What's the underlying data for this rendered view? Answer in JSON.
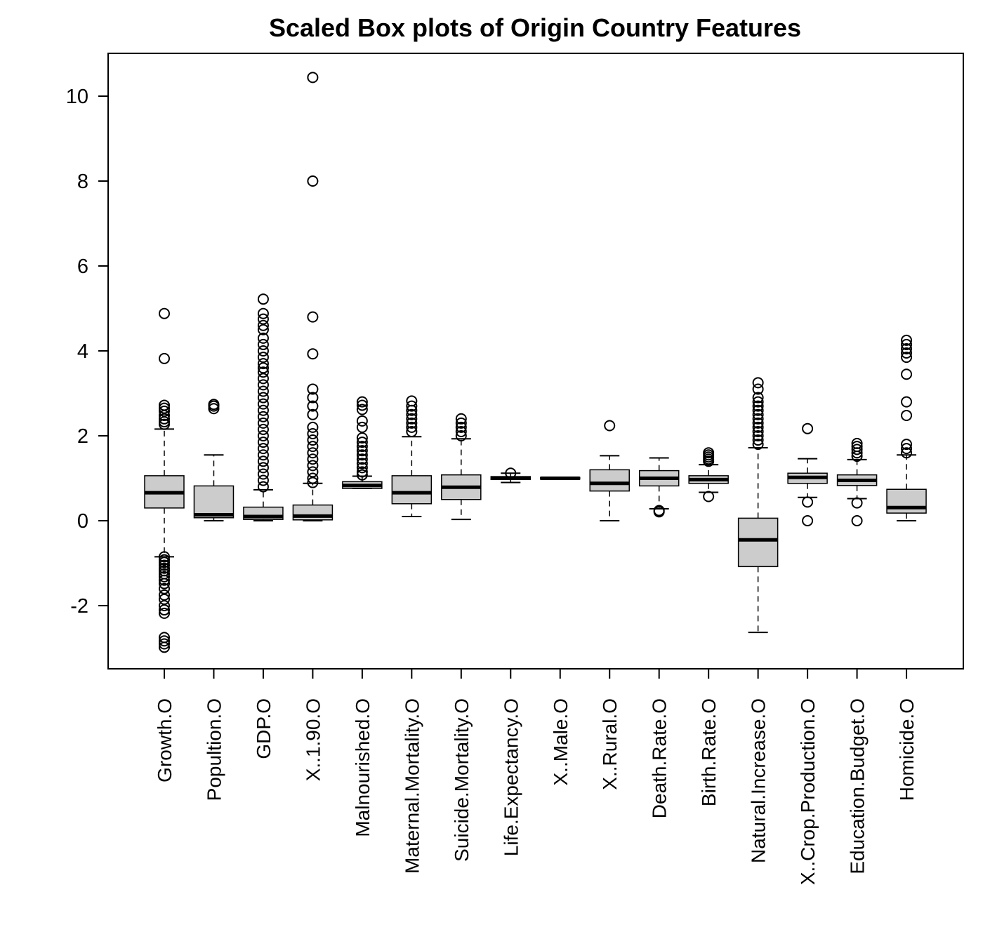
{
  "chart_data": {
    "type": "box",
    "title": "Scaled Box plots of Origin Country Features",
    "xlabel": "",
    "ylabel": "",
    "ylim": [
      -3.5,
      11
    ],
    "y_ticks": [
      -2,
      0,
      2,
      4,
      6,
      8,
      10
    ],
    "grid": false,
    "legend": "none",
    "colors": {
      "box_fill": "#cccccc",
      "stroke": "#000000",
      "background": "#ffffff"
    },
    "categories": [
      "Growth.O",
      "Popultion.O",
      "GDP.O",
      "X..1.90.O",
      "Malnourished.O",
      "Maternal.Mortality.O",
      "Suicide.Mortality.O",
      "Life.Expectancy.O",
      "X..Male.O",
      "X..Rural.O",
      "Death.Rate.O",
      "Birth.Rate.O",
      "Natural.Increase.O",
      "X..Crop.Production.O",
      "Education.Budget.O",
      "Homicide.O"
    ],
    "boxes": [
      {
        "name": "Growth.O",
        "whisker_low": -0.85,
        "q1": 0.3,
        "median": 0.66,
        "q3": 1.06,
        "whisker_high": 2.16,
        "outliers": [
          4.88,
          3.82,
          2.72,
          2.65,
          2.58,
          2.48,
          2.4,
          2.33,
          2.27,
          -0.85,
          -0.92,
          -0.98,
          -1.05,
          -1.12,
          -1.18,
          -1.25,
          -1.32,
          -1.4,
          -1.48,
          -1.6,
          -1.75,
          -1.85,
          -2.0,
          -2.1,
          -2.18,
          -2.75,
          -2.83,
          -2.9,
          -2.98
        ]
      },
      {
        "name": "Popultion.O",
        "whisker_low": 0.0,
        "q1": 0.07,
        "median": 0.14,
        "q3": 0.82,
        "whisker_high": 1.55,
        "outliers": [
          2.64,
          2.7,
          2.74
        ]
      },
      {
        "name": "GDP.O",
        "whisker_low": 0.0,
        "q1": 0.03,
        "median": 0.1,
        "q3": 0.32,
        "whisker_high": 0.73,
        "outliers": [
          5.22,
          4.88,
          4.75,
          4.6,
          4.5,
          4.3,
          4.15,
          4.0,
          3.85,
          3.7,
          3.6,
          3.5,
          3.35,
          3.2,
          3.05,
          2.9,
          2.75,
          2.6,
          2.45,
          2.3,
          2.15,
          2.0,
          1.85,
          1.7,
          1.55,
          1.4,
          1.25,
          1.1,
          0.95,
          0.8
        ]
      },
      {
        "name": "X..1.90.O",
        "whisker_low": 0.0,
        "q1": 0.02,
        "median": 0.11,
        "q3": 0.37,
        "whisker_high": 0.88,
        "outliers": [
          10.44,
          8.0,
          4.8,
          3.93,
          3.1,
          2.9,
          2.7,
          2.5,
          2.2,
          2.05,
          1.9,
          1.75,
          1.6,
          1.45,
          1.3,
          1.15,
          1.0,
          0.9
        ]
      },
      {
        "name": "Malnourished.O",
        "whisker_low": 0.76,
        "q1": 0.76,
        "median": 0.83,
        "q3": 0.92,
        "whisker_high": 1.05,
        "outliers": [
          2.8,
          2.72,
          2.62,
          2.35,
          2.2,
          1.95,
          1.85,
          1.75,
          1.65,
          1.55,
          1.45,
          1.35,
          1.25,
          1.15,
          1.08
        ]
      },
      {
        "name": "Maternal.Mortality.O",
        "whisker_low": 0.1,
        "q1": 0.4,
        "median": 0.66,
        "q3": 1.06,
        "whisker_high": 1.98,
        "outliers": [
          2.82,
          2.7,
          2.6,
          2.5,
          2.4,
          2.3,
          2.2,
          2.1
        ]
      },
      {
        "name": "Suicide.Mortality.O",
        "whisker_low": 0.03,
        "q1": 0.5,
        "median": 0.79,
        "q3": 1.08,
        "whisker_high": 1.93,
        "outliers": [
          2.4,
          2.3,
          2.2,
          2.1,
          2.0
        ]
      },
      {
        "name": "Life.Expectancy.O",
        "whisker_low": 0.9,
        "q1": 0.97,
        "median": 1.0,
        "q3": 1.04,
        "whisker_high": 1.12,
        "outliers": [
          1.12
        ]
      },
      {
        "name": "X..Male.O",
        "whisker_low": 0.98,
        "q1": 0.98,
        "median": 1.0,
        "q3": 1.02,
        "whisker_high": 1.02,
        "outliers": []
      },
      {
        "name": "X..Rural.O",
        "whisker_low": 0.0,
        "q1": 0.7,
        "median": 0.88,
        "q3": 1.2,
        "whisker_high": 1.53,
        "outliers": [
          2.24
        ]
      },
      {
        "name": "Death.Rate.O",
        "whisker_low": 0.28,
        "q1": 0.82,
        "median": 1.0,
        "q3": 1.18,
        "whisker_high": 1.48,
        "outliers": [
          0.21,
          0.24
        ]
      },
      {
        "name": "Birth.Rate.O",
        "whisker_low": 0.67,
        "q1": 0.88,
        "median": 0.97,
        "q3": 1.06,
        "whisker_high": 1.32,
        "outliers": [
          1.6,
          1.55,
          1.5,
          1.45,
          1.4,
          0.57
        ]
      },
      {
        "name": "Natural.Increase.O",
        "whisker_low": -2.63,
        "q1": -1.08,
        "median": -0.45,
        "q3": 0.06,
        "whisker_high": 1.72,
        "outliers": [
          3.25,
          3.1,
          2.9,
          2.8,
          2.7,
          2.6,
          2.5,
          2.4,
          2.3,
          2.2,
          2.1,
          2.0,
          1.9,
          1.8
        ]
      },
      {
        "name": "X..Crop.Production.O",
        "whisker_low": 0.55,
        "q1": 0.88,
        "median": 1.02,
        "q3": 1.12,
        "whisker_high": 1.46,
        "outliers": [
          2.17,
          0.44,
          0.0
        ]
      },
      {
        "name": "Education.Budget.O",
        "whisker_low": 0.52,
        "q1": 0.83,
        "median": 0.95,
        "q3": 1.08,
        "whisker_high": 1.44,
        "outliers": [
          1.82,
          1.75,
          1.68,
          1.6,
          1.52,
          0.42,
          0.0
        ]
      },
      {
        "name": "Homicide.O",
        "whisker_low": 0.0,
        "q1": 0.18,
        "median": 0.31,
        "q3": 0.74,
        "whisker_high": 1.55,
        "outliers": [
          4.25,
          4.15,
          4.05,
          3.95,
          3.85,
          3.45,
          2.8,
          2.48,
          1.8,
          1.7,
          1.6
        ]
      }
    ]
  }
}
